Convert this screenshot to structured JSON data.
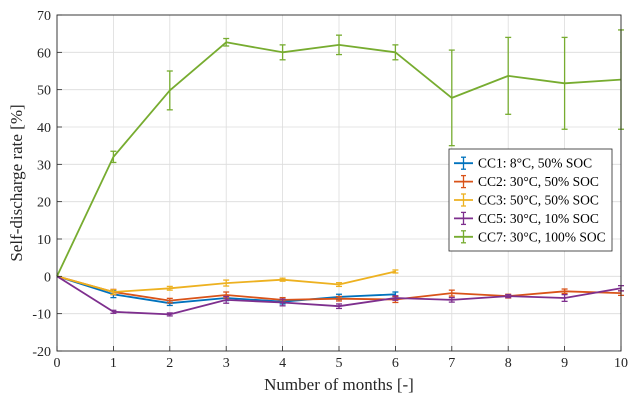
{
  "chart_data": {
    "type": "line",
    "xlabel": "Number of months [-]",
    "ylabel": "Self-discharge rate [%]",
    "xlim": [
      0,
      10
    ],
    "ylim": [
      -20,
      70
    ],
    "xticks": [
      "0",
      "1",
      "2",
      "3",
      "4",
      "5",
      "6",
      "7",
      "8",
      "9",
      "10"
    ],
    "yticks": [
      "-20",
      "-10",
      "0",
      "10",
      "20",
      "30",
      "40",
      "50",
      "60",
      "70"
    ],
    "grid": true,
    "legend_position": "right",
    "series": [
      {
        "name": "CC1: 8°C, 50% SOC",
        "color": "#0072bd",
        "x": [
          0,
          1,
          2,
          3,
          4,
          5,
          6
        ],
        "y": [
          0,
          -4.8,
          -7.2,
          -5.8,
          -6.8,
          -5.5,
          -4.8
        ],
        "err": [
          0,
          0.9,
          0.6,
          0.7,
          0.6,
          0.7,
          0.6
        ]
      },
      {
        "name": "CC2: 30°C, 50% SOC",
        "color": "#d95319",
        "x": [
          0,
          1,
          2,
          3,
          4,
          5,
          6,
          7,
          8,
          9,
          10
        ],
        "y": [
          0,
          -4.2,
          -6.5,
          -5.0,
          -6.3,
          -6.0,
          -6.2,
          -4.5,
          -5.3,
          -4.0,
          -4.5
        ],
        "err": [
          0,
          0.7,
          0.6,
          0.8,
          0.6,
          0.6,
          0.8,
          0.8,
          0.5,
          0.6,
          0.6
        ]
      },
      {
        "name": "CC3: 50°C, 50% SOC",
        "color": "#edb120",
        "x": [
          0,
          1,
          2,
          3,
          4,
          5,
          6
        ],
        "y": [
          0,
          -4.2,
          -3.2,
          -1.8,
          -0.9,
          -2.2,
          1.3
        ],
        "err": [
          0,
          0.6,
          0.5,
          0.8,
          0.4,
          0.5,
          0.4
        ]
      },
      {
        "name": "CC5: 30°C, 10% SOC",
        "color": "#7e2f8e",
        "x": [
          0,
          1,
          2,
          3,
          4,
          5,
          6,
          7,
          8,
          9,
          10
        ],
        "y": [
          0,
          -9.5,
          -10.2,
          -6.3,
          -7.0,
          -8.0,
          -5.8,
          -6.3,
          -5.3,
          -5.8,
          -3.2
        ],
        "err": [
          0,
          0.4,
          0.4,
          0.9,
          0.9,
          0.6,
          0.6,
          0.6,
          0.4,
          0.9,
          0.7
        ]
      },
      {
        "name": "CC7: 30°C, 100% SOC",
        "color": "#77ac30",
        "x": [
          0,
          1,
          2,
          3,
          4,
          5,
          6,
          7,
          8,
          9,
          10
        ],
        "y": [
          0,
          32.0,
          49.8,
          62.7,
          60.0,
          62.0,
          60.0,
          47.8,
          53.7,
          51.7,
          52.7
        ],
        "err": [
          0,
          1.5,
          5.2,
          1.0,
          2.0,
          2.6,
          2.0,
          12.8,
          10.3,
          12.3,
          13.3
        ]
      }
    ]
  }
}
